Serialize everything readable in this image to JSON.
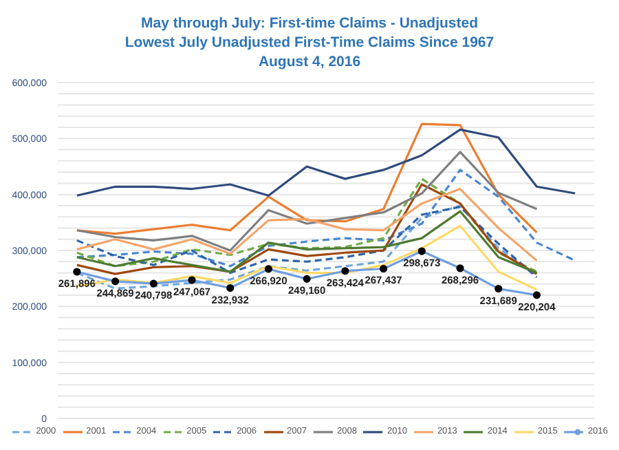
{
  "chart_data": {
    "type": "line",
    "title": "May through July: First-time Claims - Unadjusted",
    "subtitle": "Lowest July Unadjusted First-Time Claims Since 1967\nAugust 4, 2016",
    "categories": [
      null,
      null,
      null,
      null,
      null,
      null,
      null,
      null,
      null,
      null,
      null,
      null,
      null,
      null
    ],
    "series": [
      {
        "name": "2000",
        "color": "#6fa8dc",
        "line_style": "dashed",
        "values": [
          260000,
          232000,
          236000,
          242000,
          248000,
          272000,
          264000,
          272000,
          280000,
          358000,
          380000,
          304000,
          256000,
          null
        ]
      },
      {
        "name": "2001",
        "color": "#ed7d31",
        "values": [
          336000,
          330000,
          338000,
          346000,
          336000,
          396000,
          354000,
          352000,
          374000,
          526000,
          524000,
          400000,
          332000,
          null
        ]
      },
      {
        "name": "2004",
        "color": "#4a86d4",
        "line_style": "dashed",
        "values": [
          288000,
          292000,
          298000,
          294000,
          272000,
          308000,
          316000,
          322000,
          318000,
          348000,
          444000,
          396000,
          314000,
          282000
        ]
      },
      {
        "name": "2005",
        "color": "#70ad47",
        "line_style": "dashed",
        "values": [
          296000,
          272000,
          280000,
          302000,
          292000,
          312000,
          304000,
          306000,
          322000,
          428000,
          384000,
          296000,
          262000,
          null
        ]
      },
      {
        "name": "2006",
        "color": "#2e63a8",
        "line_style": "dashed",
        "values": [
          318000,
          290000,
          274000,
          300000,
          260000,
          284000,
          280000,
          288000,
          300000,
          364000,
          378000,
          312000,
          252000,
          null
        ]
      },
      {
        "name": "2007",
        "color": "#9e480e",
        "values": [
          274000,
          258000,
          270000,
          272000,
          262000,
          302000,
          290000,
          296000,
          300000,
          418000,
          384000,
          298000,
          258000,
          null
        ]
      },
      {
        "name": "2008",
        "color": "#7f7f7f",
        "values": [
          336000,
          324000,
          318000,
          326000,
          300000,
          372000,
          348000,
          358000,
          368000,
          402000,
          476000,
          403000,
          374000,
          null
        ]
      },
      {
        "name": "2010",
        "color": "#2f4b7c",
        "values": [
          398000,
          414000,
          414000,
          410000,
          418000,
          398000,
          450000,
          428000,
          444000,
          470000,
          516000,
          502000,
          414000,
          402000
        ]
      },
      {
        "name": "2013",
        "color": "#f4a46a",
        "values": [
          302000,
          320000,
          302000,
          320000,
          294000,
          354000,
          356000,
          338000,
          336000,
          384000,
          410000,
          340000,
          282000,
          null
        ]
      },
      {
        "name": "2014",
        "color": "#4e7a32",
        "values": [
          288000,
          272000,
          286000,
          274000,
          262000,
          314000,
          302000,
          304000,
          306000,
          322000,
          370000,
          288000,
          260000,
          null
        ]
      },
      {
        "name": "2015",
        "color": "#ffd966",
        "values": [
          236000,
          248000,
          242000,
          254000,
          242000,
          272000,
          260000,
          260000,
          274000,
          304000,
          344000,
          262000,
          230000,
          null
        ]
      },
      {
        "name": "2016",
        "color": "#6f9fe0",
        "marker": "circle",
        "values": [
          261896,
          244869,
          240798,
          247067,
          232932,
          266920,
          249160,
          263424,
          267437,
          298673,
          268296,
          231689,
          220204,
          null
        ],
        "value_labels": [
          "261,896",
          "244,869",
          "240,798",
          "247,067",
          "232,932",
          "266,920",
          "249,160",
          "263,424",
          "267,437",
          "298,673",
          "268,296",
          "231,689",
          "220,204",
          null
        ]
      }
    ],
    "ylim": [
      0,
      600000
    ],
    "yticks": [
      {
        "value": 0,
        "label": "0"
      },
      {
        "value": 20000,
        "label": null
      },
      {
        "value": 40000,
        "label": null
      },
      {
        "value": 60000,
        "label": null
      },
      {
        "value": 80000,
        "label": null
      },
      {
        "value": 100000,
        "label": "100,000"
      },
      {
        "value": 120000,
        "label": null
      },
      {
        "value": 140000,
        "label": null
      },
      {
        "value": 160000,
        "label": null
      },
      {
        "value": 180000,
        "label": null
      },
      {
        "value": 200000,
        "label": "200,000"
      },
      {
        "value": 220000,
        "label": null
      },
      {
        "value": 240000,
        "label": null
      },
      {
        "value": 260000,
        "label": null
      },
      {
        "value": 280000,
        "label": null
      },
      {
        "value": 300000,
        "label": "300,000"
      },
      {
        "value": 320000,
        "label": null
      },
      {
        "value": 340000,
        "label": null
      },
      {
        "value": 360000,
        "label": null
      },
      {
        "value": 380000,
        "label": null
      },
      {
        "value": 400000,
        "label": "400,000"
      },
      {
        "value": 420000,
        "label": null
      },
      {
        "value": 440000,
        "label": null
      },
      {
        "value": 460000,
        "label": null
      },
      {
        "value": 480000,
        "label": null
      },
      {
        "value": 500000,
        "label": "500,000"
      },
      {
        "value": 520000,
        "label": null
      },
      {
        "value": 540000,
        "label": null
      },
      {
        "value": 560000,
        "label": null
      },
      {
        "value": 580000,
        "label": null
      },
      {
        "value": 600000,
        "label": "600,000"
      }
    ],
    "grid": "y",
    "legend": "bottom",
    "tick_labels": "y"
  }
}
